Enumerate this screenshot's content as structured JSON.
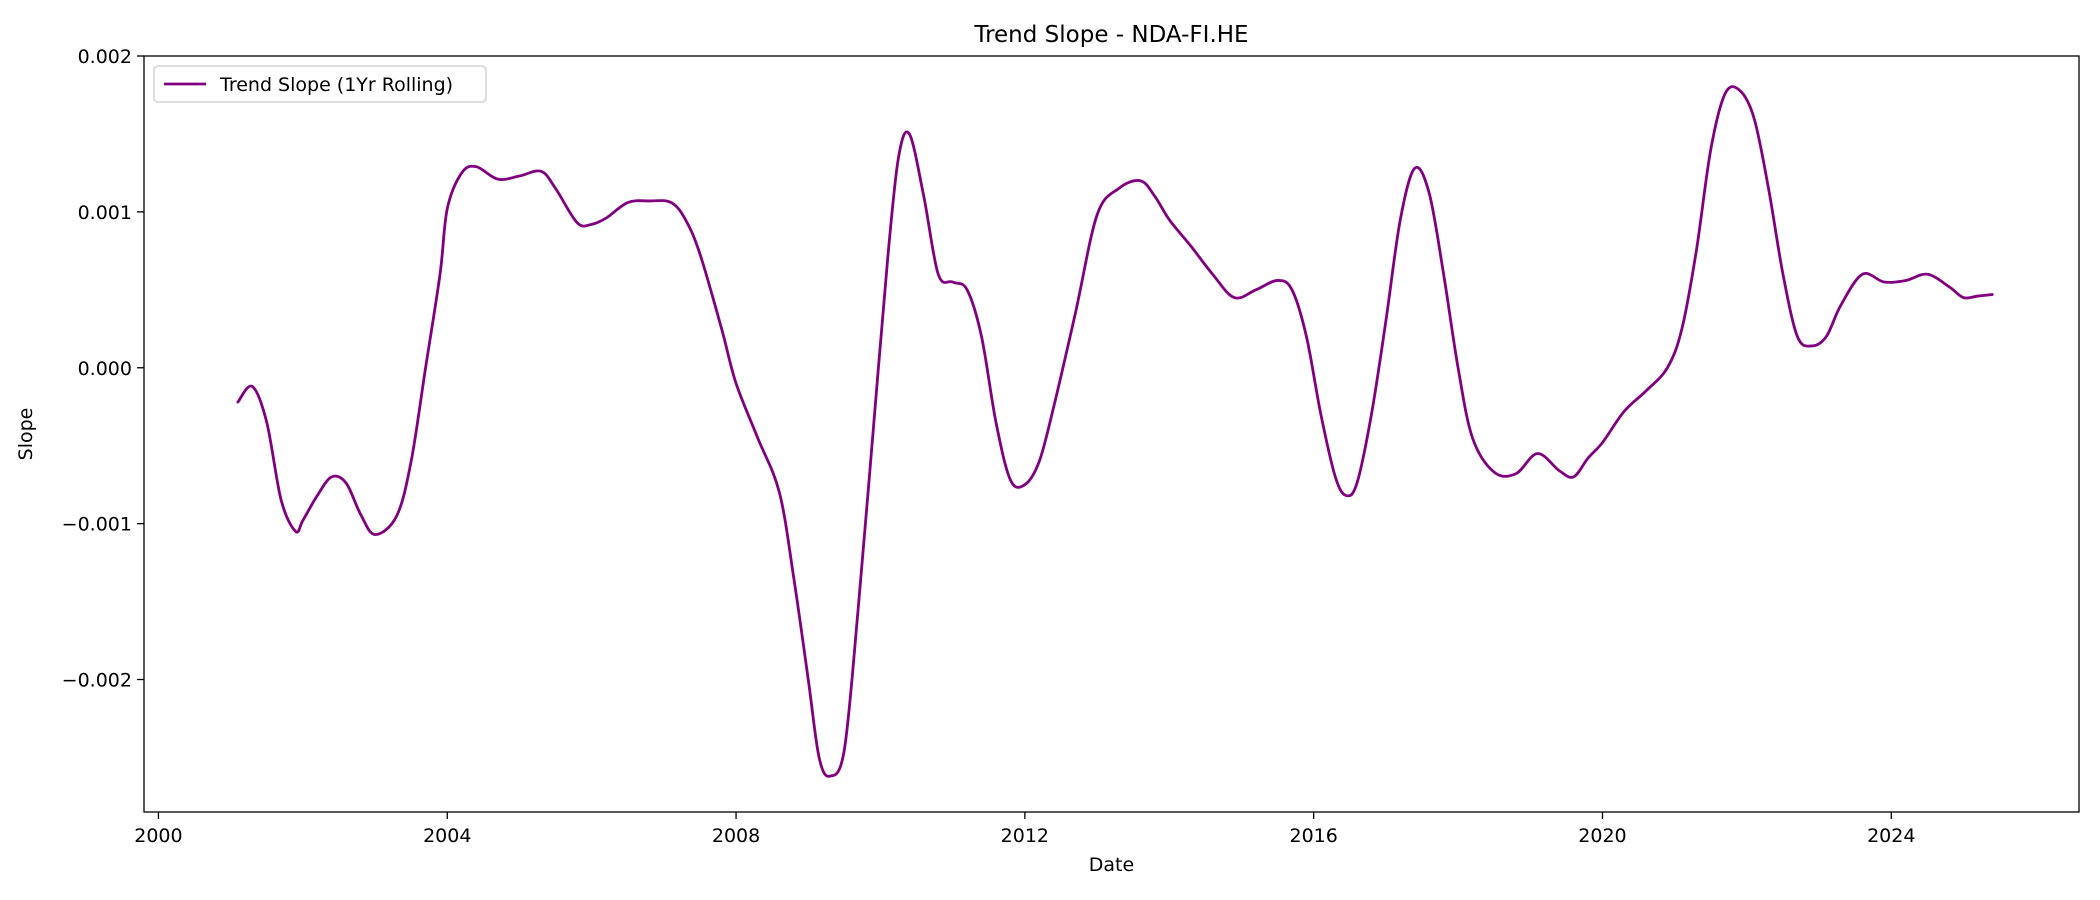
{
  "chart_data": {
    "type": "line",
    "title": "Trend Slope - NDA-FI.HE",
    "xlabel": "Date",
    "ylabel": "Slope",
    "xlim": [
      1999.8,
      2026.6
    ],
    "ylim": [
      -0.00285,
      0.002
    ],
    "x_ticks": [
      2000,
      2004,
      2008,
      2012,
      2016,
      2020,
      2024
    ],
    "x_tick_labels": [
      "2000",
      "2004",
      "2008",
      "2012",
      "2016",
      "2020",
      "2024"
    ],
    "y_ticks": [
      -0.002,
      -0.001,
      0.0,
      0.001,
      0.002
    ],
    "y_tick_labels": [
      "−0.002",
      "−0.001",
      "0.000",
      "0.001",
      "0.002"
    ],
    "grid": false,
    "legend_position": "top-left",
    "series": [
      {
        "name": "Trend Slope (1Yr Rolling)",
        "color": "#800080",
        "x": [
          2001.1,
          2001.3,
          2001.5,
          2001.7,
          2001.9,
          2002.0,
          2002.2,
          2002.4,
          2002.6,
          2002.8,
          2003.0,
          2003.3,
          2003.5,
          2003.7,
          2003.9,
          2004.0,
          2004.2,
          2004.4,
          2004.7,
          2005.0,
          2005.3,
          2005.5,
          2005.8,
          2006.0,
          2006.2,
          2006.5,
          2006.8,
          2007.1,
          2007.3,
          2007.5,
          2007.8,
          2008.0,
          2008.3,
          2008.6,
          2008.8,
          2009.0,
          2009.15,
          2009.3,
          2009.5,
          2009.7,
          2009.9,
          2010.1,
          2010.25,
          2010.4,
          2010.6,
          2010.8,
          2011.0,
          2011.2,
          2011.4,
          2011.6,
          2011.8,
          2012.0,
          2012.2,
          2012.4,
          2012.7,
          2013.0,
          2013.3,
          2013.6,
          2013.8,
          2014.0,
          2014.3,
          2014.6,
          2014.9,
          2015.2,
          2015.5,
          2015.7,
          2015.9,
          2016.1,
          2016.3,
          2016.45,
          2016.6,
          2016.8,
          2017.0,
          2017.2,
          2017.4,
          2017.6,
          2017.8,
          2018.0,
          2018.2,
          2018.5,
          2018.8,
          2019.1,
          2019.4,
          2019.6,
          2019.8,
          2020.0,
          2020.3,
          2020.6,
          2020.9,
          2021.1,
          2021.3,
          2021.5,
          2021.7,
          2021.9,
          2022.1,
          2022.3,
          2022.5,
          2022.7,
          2022.9,
          2023.1,
          2023.3,
          2023.6,
          2023.9,
          2024.2,
          2024.5,
          2024.8,
          2025.0,
          2025.2,
          2025.4
        ],
        "y": [
          -0.00022,
          -0.00012,
          -0.00035,
          -0.00085,
          -0.00105,
          -0.00098,
          -0.00082,
          -0.0007,
          -0.00074,
          -0.00094,
          -0.00107,
          -0.00095,
          -0.0006,
          0.0,
          0.0006,
          0.00102,
          0.00125,
          0.00129,
          0.00121,
          0.00123,
          0.00126,
          0.00115,
          0.00093,
          0.00092,
          0.00096,
          0.00106,
          0.00107,
          0.00106,
          0.00095,
          0.00073,
          0.00025,
          -0.0001,
          -0.00045,
          -0.0008,
          -0.00135,
          -0.002,
          -0.0025,
          -0.00262,
          -0.00245,
          -0.0015,
          -0.0004,
          0.0007,
          0.00135,
          0.0015,
          0.0011,
          0.0006,
          0.00055,
          0.0005,
          0.0002,
          -0.00035,
          -0.00072,
          -0.00075,
          -0.0006,
          -0.00025,
          0.00035,
          0.00098,
          0.00115,
          0.0012,
          0.0011,
          0.00095,
          0.00078,
          0.0006,
          0.00045,
          0.0005,
          0.00056,
          0.0005,
          0.0002,
          -0.0003,
          -0.0007,
          -0.00082,
          -0.00074,
          -0.0003,
          0.0003,
          0.00095,
          0.00128,
          0.00112,
          0.0006,
          0.0,
          -0.00045,
          -0.00067,
          -0.00068,
          -0.00055,
          -0.00066,
          -0.0007,
          -0.00058,
          -0.00048,
          -0.00028,
          -0.00015,
          0.0,
          0.00025,
          0.00075,
          0.0014,
          0.00176,
          0.00178,
          0.0016,
          0.00115,
          0.0006,
          0.0002,
          0.00014,
          0.0002,
          0.0004,
          0.0006,
          0.00055,
          0.00056,
          0.0006,
          0.00052,
          0.00045,
          0.00046,
          0.00047
        ]
      }
    ]
  }
}
